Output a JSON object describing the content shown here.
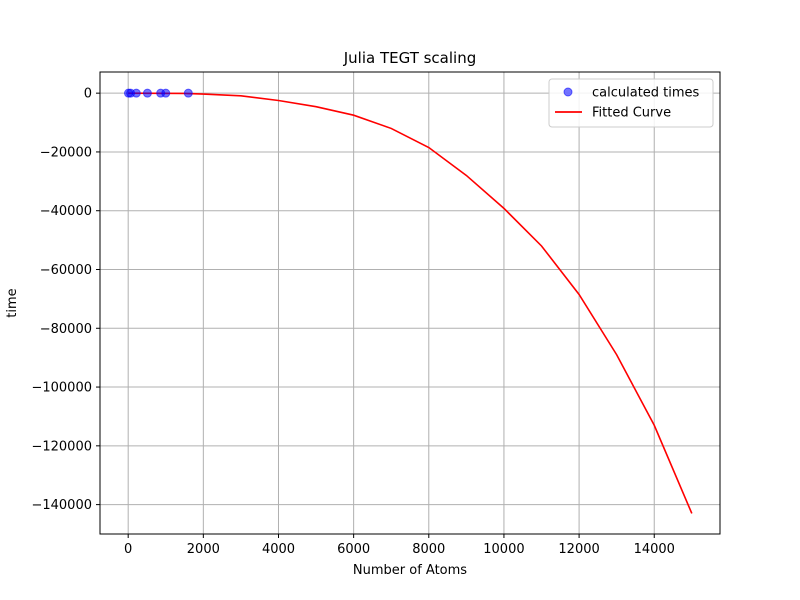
{
  "chart_data": {
    "type": "scatter",
    "title": "Julia TEGT scaling",
    "xlabel": "Number of Atoms",
    "ylabel": "time",
    "xlim": [
      -750,
      15750
    ],
    "ylim": [
      -150000,
      7200
    ],
    "xticks": [
      0,
      2000,
      4000,
      6000,
      8000,
      10000,
      12000,
      14000
    ],
    "yticks": [
      0,
      -20000,
      -40000,
      -60000,
      -80000,
      -100000,
      -120000,
      -140000
    ],
    "grid": true,
    "legend_position": "top-right",
    "series": [
      {
        "name": "calculated times",
        "kind": "scatter",
        "color": "#0000ff",
        "x": [
          8,
          64,
          216,
          512,
          864,
          1000,
          1600
        ],
        "y": [
          0,
          0,
          0,
          0,
          0,
          0,
          0
        ]
      },
      {
        "name": "Fitted Curve",
        "kind": "line",
        "color": "#ff0000",
        "x": [
          0,
          1500,
          2000,
          3000,
          4000,
          5000,
          6000,
          7000,
          8000,
          9000,
          10000,
          11000,
          12000,
          13000,
          14000,
          15000
        ],
        "y": [
          0,
          -100,
          -300,
          -900,
          -2500,
          -4600,
          -7500,
          -12000,
          -18500,
          -28000,
          -39200,
          -52000,
          -68500,
          -89000,
          -113000,
          -143000
        ]
      }
    ]
  }
}
